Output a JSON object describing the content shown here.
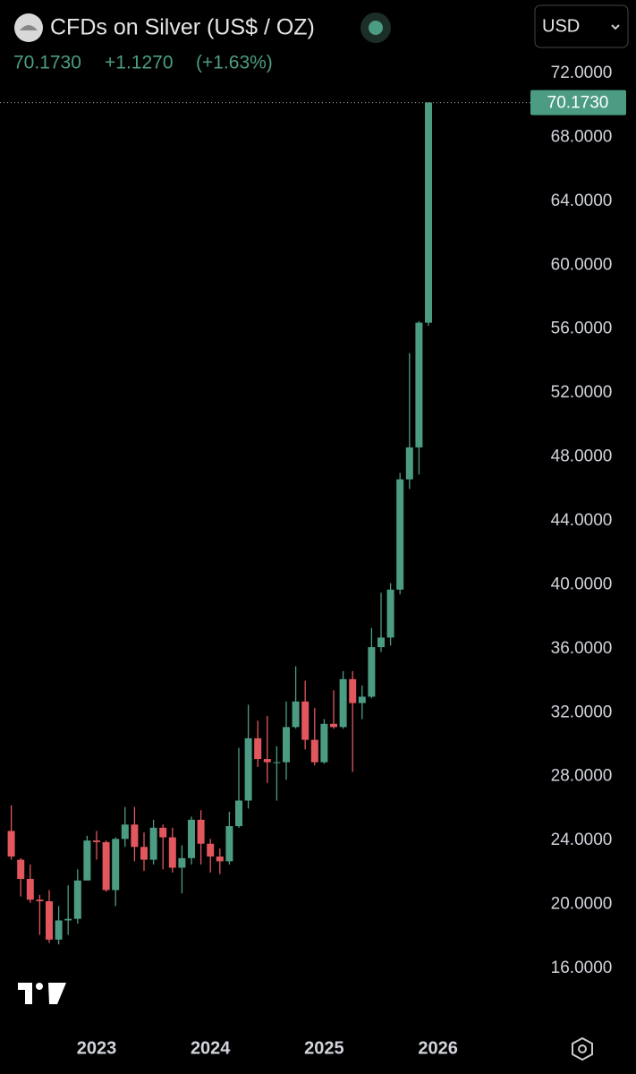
{
  "header": {
    "title": "CFDs on Silver (US$ / OZ)",
    "price": "70.1730",
    "change": "+1.1270",
    "change_percent": "(+1.63%)",
    "currency": "USD"
  },
  "chart_data": {
    "type": "candlestick",
    "categories": [
      null,
      null,
      null,
      null,
      null,
      null,
      null,
      null,
      null,
      "2023",
      null,
      null,
      null,
      null,
      null,
      null,
      null,
      null,
      null,
      null,
      null,
      "2024",
      null,
      null,
      null,
      null,
      null,
      null,
      null,
      null,
      null,
      null,
      null,
      "2025",
      null,
      null,
      null,
      null,
      null,
      null,
      null,
      null,
      null,
      null,
      null,
      "2026"
    ],
    "open": [
      24.6,
      22.8,
      21.6,
      20.3,
      20.2,
      17.8,
      19.0,
      19.1,
      21.5,
      24.0,
      23.9,
      20.9,
      24.1,
      25.0,
      23.6,
      22.8,
      24.8,
      24.2,
      22.3,
      22.9,
      25.3,
      23.8,
      23.0,
      22.7,
      24.9,
      26.5,
      30.4,
      29.1,
      28.9,
      28.9,
      31.1,
      32.7,
      30.3,
      28.9,
      31.3,
      31.1,
      34.1,
      32.6,
      33.0,
      36.1,
      36.7,
      39.7,
      46.6,
      48.6,
      56.4,
      null
    ],
    "high": [
      26.2,
      22.9,
      22.5,
      20.6,
      20.9,
      19.9,
      21.2,
      22.2,
      24.3,
      24.6,
      24.0,
      24.2,
      26.1,
      26.1,
      24.5,
      25.3,
      25.0,
      24.8,
      23.7,
      25.5,
      25.9,
      24.1,
      23.5,
      25.8,
      29.8,
      32.5,
      31.5,
      31.8,
      29.9,
      32.7,
      34.9,
      34.0,
      32.3,
      31.6,
      33.4,
      34.6,
      34.6,
      33.7,
      37.3,
      39.5,
      40.1,
      47.0,
      54.5,
      56.5,
      70.2,
      null
    ],
    "low": [
      22.8,
      20.5,
      20.1,
      18.1,
      17.6,
      17.5,
      18.1,
      18.8,
      21.6,
      22.8,
      20.8,
      19.9,
      23.6,
      22.7,
      22.1,
      22.5,
      22.2,
      22.0,
      20.7,
      22.5,
      22.5,
      22.0,
      21.9,
      22.5,
      24.8,
      26.0,
      28.6,
      27.6,
      26.5,
      27.8,
      31.0,
      29.7,
      28.7,
      28.8,
      31.0,
      31.0,
      28.3,
      31.6,
      32.9,
      35.8,
      36.2,
      39.4,
      46.0,
      46.9,
      56.2,
      null
    ],
    "close": [
      23.0,
      21.6,
      20.3,
      20.2,
      17.8,
      19.0,
      19.1,
      21.5,
      24.0,
      23.9,
      20.9,
      24.1,
      25.0,
      23.6,
      22.8,
      24.8,
      24.2,
      22.3,
      22.9,
      25.3,
      23.8,
      23.0,
      22.7,
      24.9,
      26.5,
      30.4,
      29.1,
      28.9,
      28.9,
      31.1,
      32.7,
      30.3,
      28.9,
      31.3,
      31.1,
      34.1,
      32.6,
      33.0,
      36.1,
      36.7,
      39.7,
      46.6,
      48.6,
      56.4,
      70.173,
      null
    ],
    "up_color": "#4c9c84",
    "down_color": "#e1575d",
    "ylim": [
      14.6,
      73.8
    ],
    "yticks": [
      {
        "value": 16,
        "label": "16.0000"
      },
      {
        "value": 20,
        "label": "20.0000"
      },
      {
        "value": 24,
        "label": "24.0000"
      },
      {
        "value": 28,
        "label": "28.0000"
      },
      {
        "value": 32,
        "label": "32.0000"
      },
      {
        "value": 36,
        "label": "36.0000"
      },
      {
        "value": 40,
        "label": "40.0000"
      },
      {
        "value": 44,
        "label": "44.0000"
      },
      {
        "value": 48,
        "label": "48.0000"
      },
      {
        "value": 52,
        "label": "52.0000"
      },
      {
        "value": 56,
        "label": "56.0000"
      },
      {
        "value": 60,
        "label": "60.0000"
      },
      {
        "value": 64,
        "label": "64.0000"
      },
      {
        "value": 68,
        "label": "68.0000"
      },
      {
        "value": 72,
        "label": "72.0000"
      }
    ]
  }
}
